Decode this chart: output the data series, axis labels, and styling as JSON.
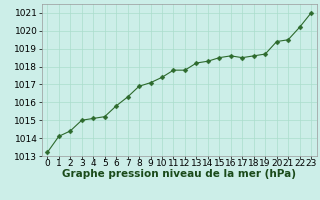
{
  "x": [
    0,
    1,
    2,
    3,
    4,
    5,
    6,
    7,
    8,
    9,
    10,
    11,
    12,
    13,
    14,
    15,
    16,
    17,
    18,
    19,
    20,
    21,
    22,
    23
  ],
  "y": [
    1013.2,
    1014.1,
    1014.4,
    1015.0,
    1015.1,
    1015.2,
    1015.8,
    1016.3,
    1016.9,
    1017.1,
    1017.4,
    1017.8,
    1017.8,
    1018.2,
    1018.3,
    1018.5,
    1018.6,
    1018.5,
    1018.6,
    1018.7,
    1019.4,
    1019.5,
    1020.2,
    1021.0
  ],
  "line_color": "#2d6a2d",
  "marker": "D",
  "marker_size": 2.5,
  "bg_color": "#cceee8",
  "grid_color": "#aaddcc",
  "xlabel": "Graphe pression niveau de la mer (hPa)",
  "xlabel_color": "#1a4a1a",
  "xlabel_fontsize": 7.5,
  "ylabel_fontsize": 6.5,
  "tick_fontsize": 6.5,
  "ylim": [
    1013,
    1021.5
  ],
  "yticks": [
    1013,
    1014,
    1015,
    1016,
    1017,
    1018,
    1019,
    1020,
    1021
  ],
  "xlim": [
    -0.5,
    23.5
  ],
  "xticks": [
    0,
    1,
    2,
    3,
    4,
    5,
    6,
    7,
    8,
    9,
    10,
    11,
    12,
    13,
    14,
    15,
    16,
    17,
    18,
    19,
    20,
    21,
    22,
    23
  ]
}
